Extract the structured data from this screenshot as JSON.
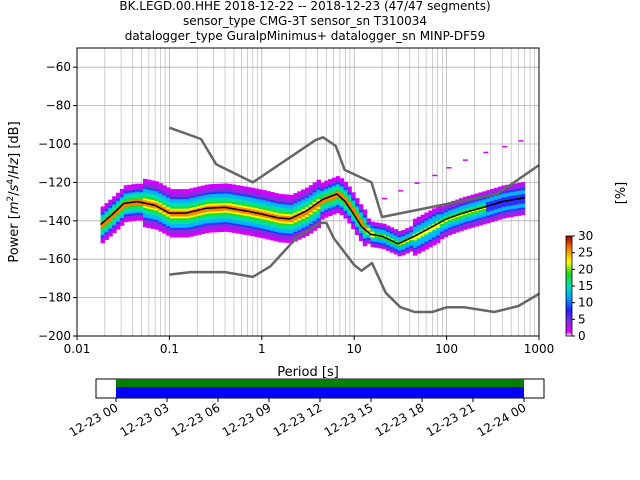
{
  "chart_data": [
    {
      "type": "heatmap",
      "title_lines": [
        "BK.LEGD.00.HHE   2018-12-22 -- 2018-12-23  (47/47 segments)",
        "sensor_type CMG-3T sensor_sn T310034",
        "datalogger_type GuralpMinimus+ datalogger_sn MINP-DF59"
      ],
      "xlabel": "Period [s]",
      "ylabel_parts": [
        "Power [",
        "m",
        "2",
        "/",
        "s",
        "4",
        "/",
        "Hz",
        "] [dB]"
      ],
      "x_scale": "log",
      "xlim": [
        0.01,
        1000
      ],
      "ylim": [
        -200,
        -50
      ],
      "x_ticks": [
        {
          "value": 0.01,
          "label": "0.01"
        },
        {
          "value": 0.1,
          "label": "0.1"
        },
        {
          "value": 1,
          "label": "1"
        },
        {
          "value": 10,
          "label": "10"
        },
        {
          "value": 100,
          "label": "100"
        },
        {
          "value": 1000,
          "label": "1000"
        }
      ],
      "y_ticks": [
        {
          "value": -60,
          "label": "−60"
        },
        {
          "value": -80,
          "label": "−80"
        },
        {
          "value": -100,
          "label": "−100"
        },
        {
          "value": -120,
          "label": "−120"
        },
        {
          "value": -140,
          "label": "−140"
        },
        {
          "value": -160,
          "label": "−160"
        },
        {
          "value": -180,
          "label": "−180"
        },
        {
          "value": -200,
          "label": "−200"
        }
      ],
      "grid": true,
      "colorbar": {
        "label": "[%]",
        "range": [
          0,
          30
        ],
        "ticks": [
          {
            "value": 0,
            "label": "0"
          },
          {
            "value": 5,
            "label": "5"
          },
          {
            "value": 10,
            "label": "10"
          },
          {
            "value": 15,
            "label": "15"
          },
          {
            "value": 20,
            "label": "20"
          },
          {
            "value": 25,
            "label": "25"
          },
          {
            "value": 30,
            "label": "30"
          }
        ]
      },
      "noise_models": {
        "color": "#666666",
        "high": [
          [
            0.1,
            -91.5
          ],
          [
            0.22,
            -97.4
          ],
          [
            0.32,
            -110.5
          ],
          [
            0.8,
            -120
          ],
          [
            3.8,
            -98
          ],
          [
            4.6,
            -96.5
          ],
          [
            6.3,
            -101
          ],
          [
            7.9,
            -113.5
          ],
          [
            15.4,
            -120
          ],
          [
            20,
            -138
          ],
          [
            354.8,
            -126
          ],
          [
            1000,
            -111
          ]
        ],
        "low": [
          [
            0.1,
            -168
          ],
          [
            0.17,
            -166.7
          ],
          [
            0.4,
            -166.7
          ],
          [
            0.8,
            -169.2
          ],
          [
            1.24,
            -163.7
          ],
          [
            2.4,
            -148.6
          ],
          [
            4.3,
            -141.1
          ],
          [
            5,
            -141.1
          ],
          [
            6,
            -149
          ],
          [
            10,
            -163
          ],
          [
            12,
            -166
          ],
          [
            15.6,
            -162
          ],
          [
            21.9,
            -177.5
          ],
          [
            31.6,
            -185
          ],
          [
            45,
            -187.5
          ],
          [
            70,
            -187.5
          ],
          [
            101,
            -185
          ],
          [
            154,
            -185
          ],
          [
            328,
            -187.5
          ],
          [
            600,
            -184.4
          ],
          [
            1000,
            -178
          ]
        ]
      },
      "mean_curve": {
        "color": "#000000",
        "points": [
          [
            0.018,
            -142
          ],
          [
            0.025,
            -136
          ],
          [
            0.032,
            -131
          ],
          [
            0.045,
            -130
          ],
          [
            0.07,
            -132
          ],
          [
            0.1,
            -136
          ],
          [
            0.15,
            -136
          ],
          [
            0.25,
            -133.5
          ],
          [
            0.4,
            -133
          ],
          [
            0.7,
            -135
          ],
          [
            1,
            -136.5
          ],
          [
            1.5,
            -138.5
          ],
          [
            2,
            -139
          ],
          [
            3,
            -135
          ],
          [
            4.5,
            -129
          ],
          [
            6.5,
            -126
          ],
          [
            8,
            -130
          ],
          [
            10,
            -137
          ],
          [
            12,
            -143
          ],
          [
            15,
            -147
          ],
          [
            20,
            -148
          ],
          [
            30,
            -152
          ],
          [
            45,
            -148
          ],
          [
            70,
            -143
          ],
          [
            100,
            -139
          ],
          [
            150,
            -136
          ],
          [
            250,
            -133
          ],
          [
            400,
            -130
          ],
          [
            700,
            -128
          ]
        ]
      },
      "density_colors": [
        "#ffffff",
        "#d400ff",
        "#8a2be2",
        "#2f2fff",
        "#00b4ff",
        "#00e0a0",
        "#22dd22",
        "#ffff00",
        "#ff8000",
        "#cc0000"
      ]
    },
    {
      "type": "timeline",
      "x_ticks": [
        {
          "label": "12-23 00"
        },
        {
          "label": "12-23 03"
        },
        {
          "label": "12-23 06"
        },
        {
          "label": "12-23 09"
        },
        {
          "label": "12-23 12"
        },
        {
          "label": "12-23 15"
        },
        {
          "label": "12-23 18"
        },
        {
          "label": "12-23 21"
        },
        {
          "label": "12-24 00"
        }
      ],
      "coverage": {
        "start_hours": 0,
        "end_hours": 24
      },
      "bands": [
        {
          "color": "#008000",
          "meaning": "data"
        },
        {
          "color": "#0000ff",
          "meaning": "psd"
        }
      ]
    }
  ]
}
